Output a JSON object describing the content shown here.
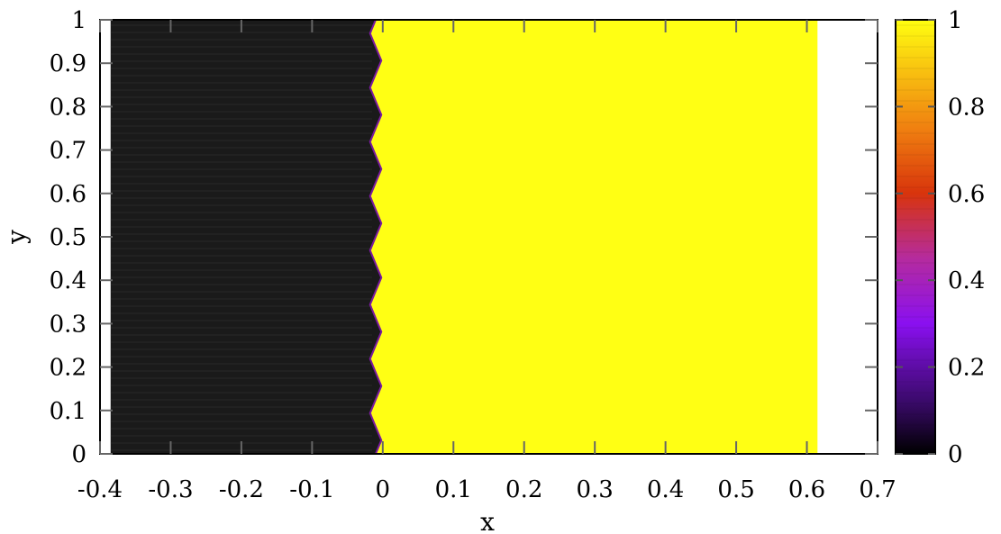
{
  "chart_data": {
    "type": "heatmap",
    "title": "",
    "xlabel": "x",
    "ylabel": "y",
    "xlim": [
      -0.4,
      0.7
    ],
    "ylim": [
      0,
      1
    ],
    "x_ticks": [
      -0.4,
      -0.3,
      -0.2,
      -0.1,
      0,
      0.1,
      0.2,
      0.3,
      0.4,
      0.5,
      0.6,
      0.7
    ],
    "x_tick_labels": [
      "-0.4",
      "-0.3",
      "-0.2",
      "-0.1",
      "0",
      "0.1",
      "0.2",
      "0.3",
      "0.4",
      "0.5",
      "0.6",
      "0.7"
    ],
    "y_ticks": [
      0,
      0.1,
      0.2,
      0.3,
      0.4,
      0.5,
      0.6,
      0.7,
      0.8,
      0.9,
      1
    ],
    "y_tick_labels": [
      "0",
      "0.1",
      "0.2",
      "0.3",
      "0.4",
      "0.5",
      "0.6",
      "0.7",
      "0.8",
      "0.9",
      "1"
    ],
    "data_extent": {
      "x": [
        -0.385,
        0.615
      ],
      "y": [
        0,
        1
      ]
    },
    "field": {
      "description_values": {
        "left_region": 0,
        "right_region": 1
      },
      "interface": {
        "mean_x": -0.01,
        "amplitude": 0.008,
        "wavelength": 0.125,
        "points": [
          {
            "y": 0.0,
            "x": -0.01
          },
          {
            "y": 0.03125,
            "x": -0.002
          },
          {
            "y": 0.0625,
            "x": -0.01
          },
          {
            "y": 0.09375,
            "x": -0.018
          },
          {
            "y": 0.125,
            "x": -0.01
          },
          {
            "y": 0.15625,
            "x": -0.002
          },
          {
            "y": 0.1875,
            "x": -0.01
          },
          {
            "y": 0.21875,
            "x": -0.018
          },
          {
            "y": 0.25,
            "x": -0.01
          },
          {
            "y": 0.28125,
            "x": -0.002
          },
          {
            "y": 0.3125,
            "x": -0.01
          },
          {
            "y": 0.34375,
            "x": -0.018
          },
          {
            "y": 0.375,
            "x": -0.01
          },
          {
            "y": 0.40625,
            "x": -0.002
          },
          {
            "y": 0.4375,
            "x": -0.01
          },
          {
            "y": 0.46875,
            "x": -0.018
          },
          {
            "y": 0.5,
            "x": -0.01
          },
          {
            "y": 0.53125,
            "x": -0.002
          },
          {
            "y": 0.5625,
            "x": -0.01
          },
          {
            "y": 0.59375,
            "x": -0.018
          },
          {
            "y": 0.625,
            "x": -0.01
          },
          {
            "y": 0.65625,
            "x": -0.002
          },
          {
            "y": 0.6875,
            "x": -0.01
          },
          {
            "y": 0.71875,
            "x": -0.018
          },
          {
            "y": 0.75,
            "x": -0.01
          },
          {
            "y": 0.78125,
            "x": -0.002
          },
          {
            "y": 0.8125,
            "x": -0.01
          },
          {
            "y": 0.84375,
            "x": -0.018
          },
          {
            "y": 0.875,
            "x": -0.01
          },
          {
            "y": 0.90625,
            "x": -0.002
          },
          {
            "y": 0.9375,
            "x": -0.01
          },
          {
            "y": 0.96875,
            "x": -0.018
          },
          {
            "y": 1.0,
            "x": -0.01
          }
        ]
      }
    },
    "colorbar": {
      "range": [
        0,
        1
      ],
      "ticks": [
        0,
        0.2,
        0.4,
        0.6,
        0.8,
        1
      ],
      "tick_labels": [
        "0",
        "0.2",
        "0.4",
        "0.6",
        "0.8",
        "1"
      ],
      "colormap_stops": [
        {
          "value": 0.0,
          "color": "#000000"
        },
        {
          "value": 0.12,
          "color": "#3a0a6a"
        },
        {
          "value": 0.3,
          "color": "#8a10f0"
        },
        {
          "value": 0.45,
          "color": "#b52b9e"
        },
        {
          "value": 0.6,
          "color": "#d8340c"
        },
        {
          "value": 0.75,
          "color": "#f08010"
        },
        {
          "value": 0.88,
          "color": "#f8c010"
        },
        {
          "value": 1.0,
          "color": "#ffff10"
        }
      ]
    },
    "grid": false,
    "legend": "none"
  },
  "colors": {
    "low": "#1a1a1a",
    "high": "#ffff14",
    "interface": "#7a1aa0"
  }
}
